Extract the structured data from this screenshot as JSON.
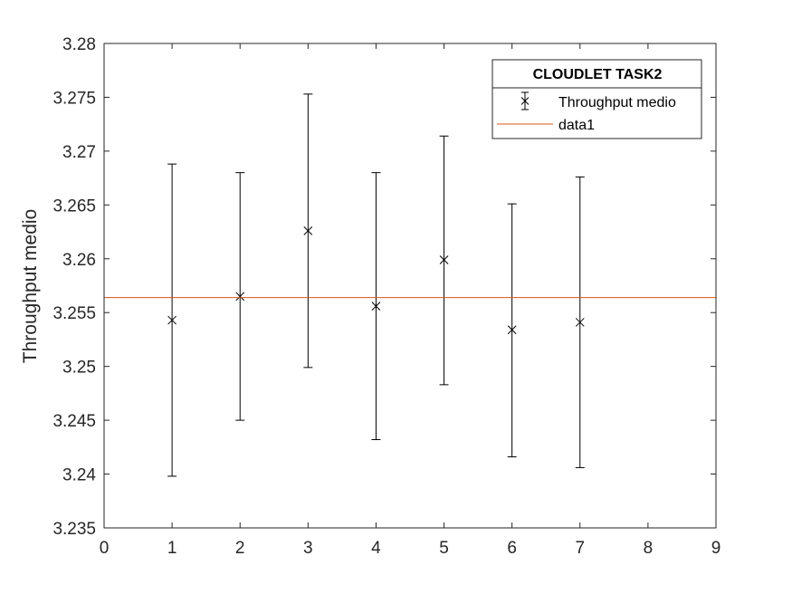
{
  "chart_data": {
    "type": "scatter",
    "title": "",
    "xlabel": "",
    "ylabel": "Throughput medio",
    "xlim": [
      0,
      9
    ],
    "ylim": [
      3.235,
      3.28
    ],
    "x_ticks": [
      "0",
      "1",
      "2",
      "3",
      "4",
      "5",
      "6",
      "7",
      "8",
      "9"
    ],
    "y_ticks": [
      "3.235",
      "3.24",
      "3.245",
      "3.25",
      "3.255",
      "3.26",
      "3.265",
      "3.27",
      "3.275",
      "3.28"
    ],
    "grid": false,
    "legend": {
      "title": "CLOUDLET TASK2",
      "placement": "top-right",
      "entries": [
        "Throughput medio",
        "data1"
      ]
    },
    "series": [
      {
        "name": "Throughput medio",
        "kind": "errorbar",
        "marker": "x",
        "color": "#000000",
        "x": [
          1,
          2,
          3,
          4,
          5,
          6,
          7
        ],
        "y": [
          3.2543,
          3.2565,
          3.2626,
          3.2556,
          3.2599,
          3.2534,
          3.2541
        ],
        "lower": [
          3.2398,
          3.245,
          3.2499,
          3.2432,
          3.2483,
          3.2416,
          3.2406
        ],
        "upper": [
          3.2688,
          3.268,
          3.2753,
          3.268,
          3.2714,
          3.2651,
          3.2676
        ]
      },
      {
        "name": "data1",
        "kind": "hline",
        "color": "#d95319",
        "y": 3.2564
      }
    ]
  }
}
